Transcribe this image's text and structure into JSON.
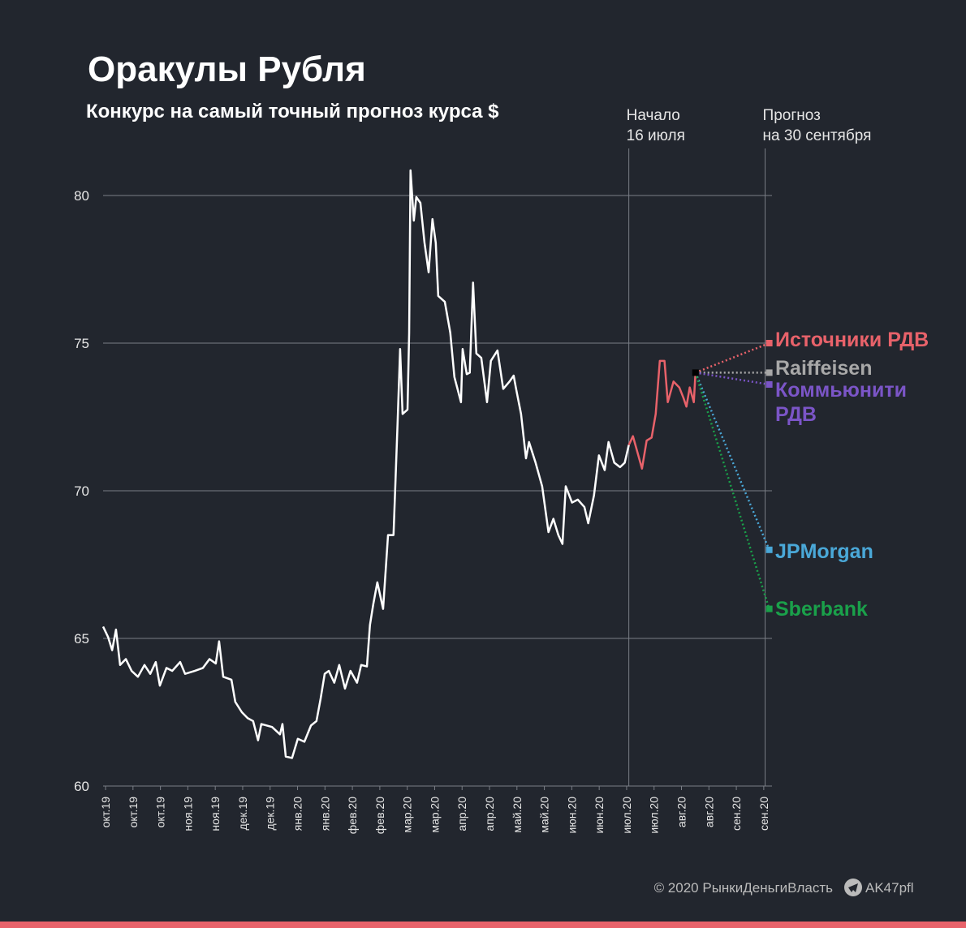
{
  "chart_data": {
    "type": "line",
    "title": "Оракулы Рубля",
    "subtitle": "Конкурс на самый точный прогноз курса $",
    "ylim": [
      60,
      80
    ],
    "yticks": [
      60,
      65,
      70,
      75,
      80
    ],
    "xlim": [
      -0.09,
      24.3
    ],
    "xticks": [
      {
        "value": 0,
        "label": "окт.19"
      },
      {
        "value": 1,
        "label": "окт.19"
      },
      {
        "value": 2,
        "label": "окт.19"
      },
      {
        "value": 3,
        "label": "ноя.19"
      },
      {
        "value": 4,
        "label": "ноя.19"
      },
      {
        "value": 5,
        "label": "дек.19"
      },
      {
        "value": 6,
        "label": "дек.19"
      },
      {
        "value": 7,
        "label": "янв.20"
      },
      {
        "value": 8,
        "label": "янв.20"
      },
      {
        "value": 9,
        "label": "фев.20"
      },
      {
        "value": 10,
        "label": "фев.20"
      },
      {
        "value": 11,
        "label": "мар.20"
      },
      {
        "value": 12,
        "label": "мар.20"
      },
      {
        "value": 13,
        "label": "апр.20"
      },
      {
        "value": 14,
        "label": "апр.20"
      },
      {
        "value": 15,
        "label": "май.20"
      },
      {
        "value": 16,
        "label": "май.20"
      },
      {
        "value": 17,
        "label": "июн.20"
      },
      {
        "value": 18,
        "label": "июн.20"
      },
      {
        "value": 19,
        "label": "июл.20"
      },
      {
        "value": 20,
        "label": "июл.20"
      },
      {
        "value": 21,
        "label": "авг.20"
      },
      {
        "value": 22,
        "label": "авг.20"
      },
      {
        "value": 23,
        "label": "сен.20"
      },
      {
        "value": 24,
        "label": "сен.20"
      }
    ],
    "grid": true,
    "series": [
      {
        "color": "#ffffff",
        "x": [
          -0.09,
          0.09,
          0.24,
          0.38,
          0.53,
          0.74,
          0.95,
          1.18,
          1.42,
          1.63,
          1.83,
          1.98,
          2.22,
          2.43,
          2.72,
          2.9,
          3.25,
          3.55,
          3.79,
          4.02,
          4.14,
          4.29,
          4.59,
          4.73,
          4.97,
          5.18,
          5.38,
          5.56,
          5.68,
          6.07,
          6.36,
          6.45,
          6.57,
          6.8,
          7.01,
          7.25,
          7.49,
          7.69,
          7.84,
          7.99,
          8.14,
          8.34,
          8.52,
          8.73,
          8.93,
          9.17,
          9.32,
          9.53,
          9.64,
          9.76,
          9.91,
          10.12,
          10.3,
          10.5,
          10.65,
          10.74,
          10.83,
          11.01,
          11.07,
          11.12,
          11.24,
          11.33,
          11.48,
          11.63,
          11.78,
          11.92,
          12.04,
          12.13,
          12.37,
          12.57,
          12.72,
          12.96,
          13.02,
          13.17,
          13.28,
          13.4,
          13.52,
          13.7,
          13.91,
          14.05,
          14.29,
          14.5,
          14.73,
          14.88,
          14.97,
          15.15,
          15.33,
          15.44,
          15.68,
          15.92,
          16.15,
          16.33,
          16.51,
          16.66,
          16.78,
          17.01,
          17.22,
          17.46,
          17.6,
          17.81,
          17.99,
          18.2,
          18.34,
          18.55,
          18.76,
          18.93,
          19.08
        ],
        "values": [
          65.4,
          65.05,
          64.6,
          65.3,
          64.1,
          64.3,
          63.9,
          63.7,
          64.1,
          63.8,
          64.2,
          63.4,
          64.0,
          63.9,
          64.2,
          63.8,
          63.9,
          64.0,
          64.3,
          64.15,
          64.9,
          63.7,
          63.6,
          62.85,
          62.5,
          62.3,
          62.2,
          61.55,
          62.1,
          62.0,
          61.75,
          62.1,
          61.0,
          60.95,
          61.6,
          61.5,
          62.05,
          62.2,
          62.95,
          63.8,
          63.9,
          63.5,
          64.1,
          63.3,
          63.9,
          63.5,
          64.1,
          64.05,
          65.45,
          66.15,
          66.9,
          66.0,
          68.5,
          68.5,
          72.35,
          74.8,
          72.6,
          72.75,
          75.35,
          80.85,
          79.15,
          79.95,
          79.75,
          78.4,
          77.4,
          79.2,
          78.4,
          76.6,
          76.4,
          75.35,
          73.85,
          73.0,
          74.8,
          73.95,
          74.0,
          77.05,
          74.65,
          74.5,
          73.0,
          74.4,
          74.75,
          73.45,
          73.7,
          73.9,
          73.45,
          72.6,
          71.1,
          71.65,
          70.95,
          70.15,
          68.6,
          69.05,
          68.5,
          68.2,
          70.15,
          69.6,
          69.7,
          69.45,
          68.9,
          69.85,
          71.2,
          70.7,
          71.65,
          70.95,
          70.8,
          70.95,
          71.55
        ]
      },
      {
        "color": "#e8626a",
        "x": [
          19.08,
          19.23,
          19.38,
          19.56,
          19.73,
          19.91,
          20.06,
          20.21,
          20.38,
          20.5,
          20.71,
          20.92,
          21.07,
          21.18,
          21.3,
          21.45,
          21.51
        ],
        "values": [
          71.55,
          71.85,
          71.35,
          70.75,
          71.7,
          71.8,
          72.6,
          74.4,
          74.4,
          73.0,
          73.7,
          73.5,
          73.15,
          72.85,
          73.5,
          73.0,
          74.0
        ]
      }
    ],
    "annotations": [
      {
        "lines": [
          "Начало",
          "16 июля"
        ],
        "x": 19.08
      },
      {
        "lines": [
          "Прогноз",
          "на 30 сентября"
        ],
        "x": 24.05
      }
    ],
    "forecast_x": 24.2,
    "forecasts": [
      {
        "name": "Источники РДВ",
        "color": "#e8626a",
        "value": 75.0
      },
      {
        "name": "Raiffeisen",
        "color": "#a8a8a8",
        "value": 74.0
      },
      {
        "name": "Коммьюнити РДВ",
        "color": "#7b55c7",
        "value": 73.6
      },
      {
        "name": "JPMorgan",
        "color": "#4aa8d8",
        "value": 68.0
      },
      {
        "name": "Sberbank",
        "color": "#1aa04a",
        "value": 66.0
      }
    ],
    "footer": {
      "copyright": "© 2020 РынкиДеньгиВласть",
      "channel": "AK47pfl"
    }
  }
}
